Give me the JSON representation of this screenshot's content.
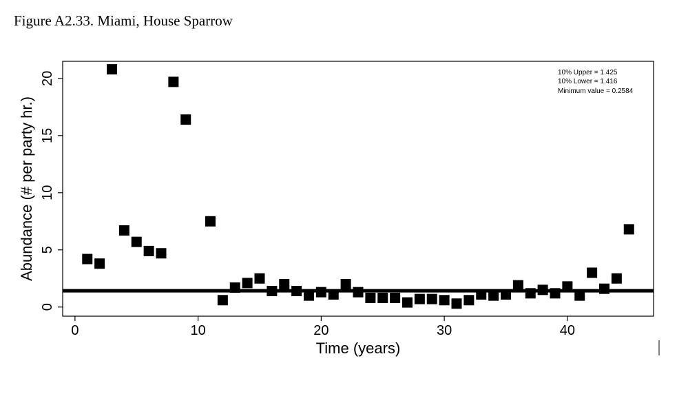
{
  "figure_title": "Figure A2.33. Miami, House Sparrow",
  "chart_data": {
    "type": "scatter",
    "title": "",
    "xlabel": "Time (years)",
    "ylabel": "Abundance (# per party hr.)",
    "xlim": [
      -1,
      47
    ],
    "ylim": [
      -0.8,
      21.5
    ],
    "xticks": [
      0,
      10,
      20,
      30,
      40
    ],
    "yticks": [
      0,
      5,
      10,
      15,
      20
    ],
    "marker": "square",
    "marker_color": "#000000",
    "x": [
      1,
      2,
      3,
      4,
      5,
      6,
      7,
      8,
      9,
      11,
      12,
      13,
      14,
      15,
      16,
      17,
      18,
      19,
      20,
      21,
      22,
      23,
      24,
      25,
      26,
      27,
      28,
      29,
      30,
      31,
      32,
      33,
      34,
      35,
      36,
      37,
      38,
      39,
      40,
      41,
      42,
      43,
      44,
      45
    ],
    "y": [
      4.2,
      3.8,
      20.8,
      6.7,
      5.7,
      4.9,
      4.7,
      19.7,
      16.4,
      7.5,
      0.6,
      1.7,
      2.1,
      2.5,
      1.4,
      2.0,
      1.4,
      1.0,
      1.3,
      1.1,
      2.0,
      1.3,
      0.8,
      0.8,
      0.8,
      0.4,
      0.7,
      0.7,
      0.6,
      0.3,
      0.6,
      1.1,
      1.0,
      1.1,
      1.9,
      1.2,
      1.5,
      1.2,
      1.8,
      1.0,
      3.0,
      1.6,
      2.5,
      6.8
    ],
    "hline": 1.42,
    "annotations": [
      "10% Upper =  1.425",
      "10% Lower =  1.416",
      "Minimum value =  0.2584"
    ],
    "legend_position": "top-right",
    "grid": false
  }
}
